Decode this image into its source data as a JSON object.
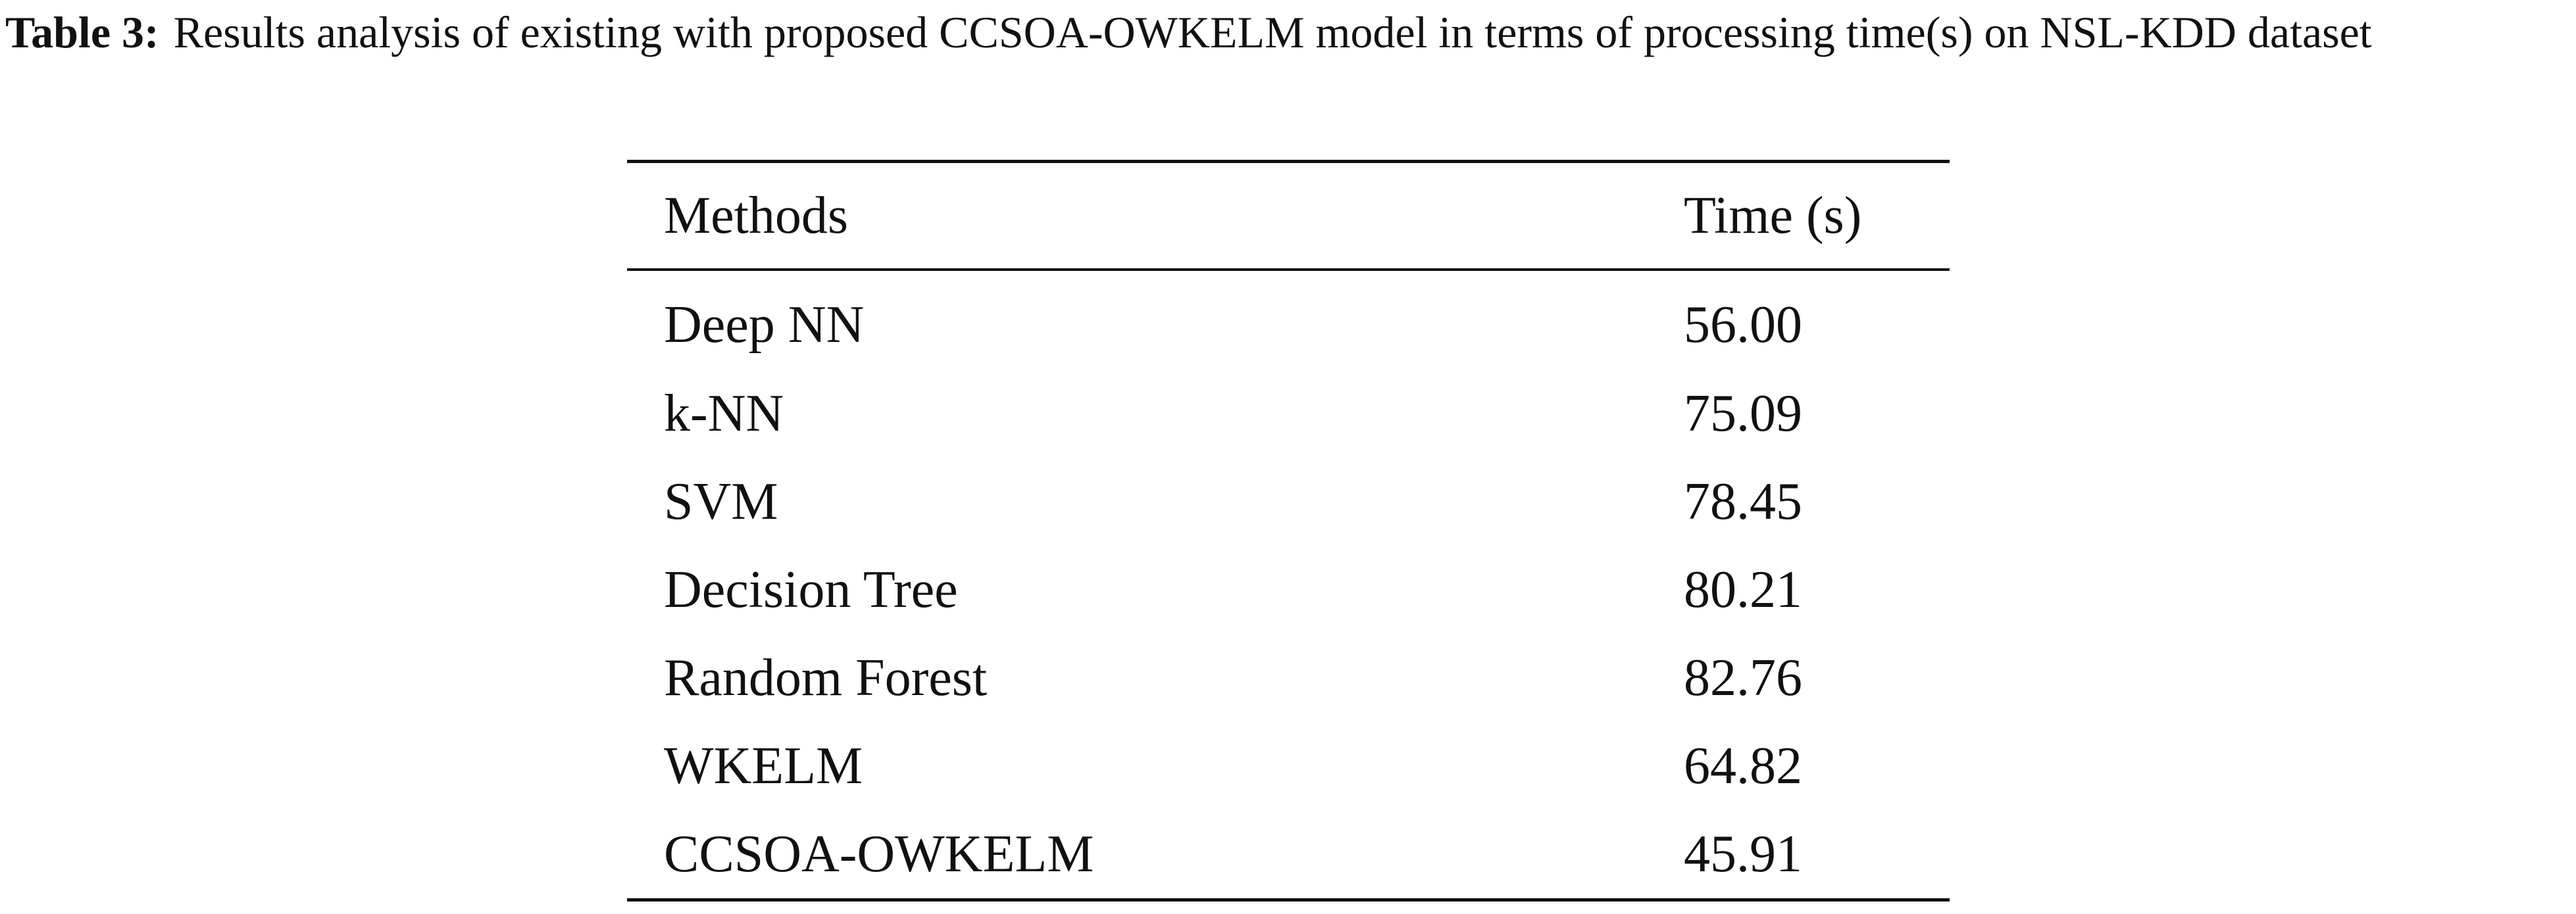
{
  "caption": {
    "label": "Table 3:",
    "text": "Results analysis of existing with proposed CCSOA-OWKELM model in terms of processing time(s) on NSL-KDD dataset"
  },
  "table": {
    "headers": [
      "Methods",
      "Time (s)"
    ],
    "rows": [
      {
        "method": "Deep NN",
        "time": "56.00"
      },
      {
        "method": "k-NN",
        "time": "75.09"
      },
      {
        "method": "SVM",
        "time": "78.45"
      },
      {
        "method": "Decision Tree",
        "time": "80.21"
      },
      {
        "method": "Random Forest",
        "time": "82.76"
      },
      {
        "method": "WKELM",
        "time": "64.82"
      },
      {
        "method": "CCSOA-OWKELM",
        "time": "45.91"
      }
    ]
  }
}
